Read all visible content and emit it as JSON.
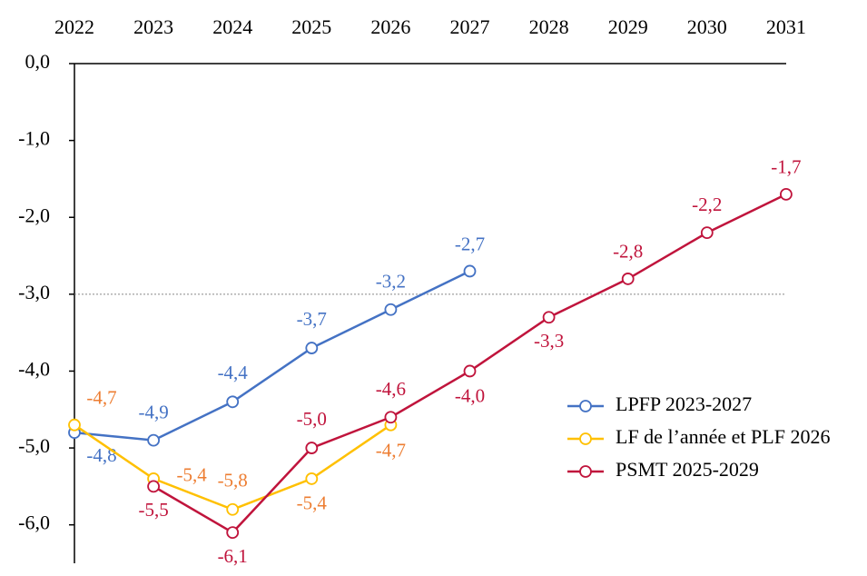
{
  "chart_data": {
    "type": "line",
    "categories": [
      "2022",
      "2023",
      "2024",
      "2025",
      "2026",
      "2027",
      "2028",
      "2029",
      "2030",
      "2031"
    ],
    "ylim": [
      -6.5,
      0
    ],
    "yticks": [
      {
        "value": 0,
        "label": "0,0"
      },
      {
        "value": -1,
        "label": "-1,0"
      },
      {
        "value": -2,
        "label": "-2,0"
      },
      {
        "value": -3,
        "label": "-3,0"
      },
      {
        "value": -4,
        "label": "-4,0"
      },
      {
        "value": -5,
        "label": "-5,0"
      },
      {
        "value": -6,
        "label": "-6,0"
      }
    ],
    "reference_line": -3,
    "legend": "bottom-right",
    "series": [
      {
        "name": "LPFP 2023-2027",
        "color": "#4472c4",
        "label_color": "#4472c4",
        "values": [
          -4.8,
          -4.9,
          -4.4,
          -3.7,
          -3.2,
          -2.7,
          null,
          null,
          null,
          null
        ],
        "value_labels": [
          "-4,8",
          "-4,9",
          "-4,4",
          "-3,7",
          "-3,2",
          "-2,7",
          null,
          null,
          null,
          null
        ]
      },
      {
        "name": "LF de l’année et PLF 2026",
        "color": "#ffc000",
        "label_color": "#ed7d31",
        "values": [
          -4.7,
          -5.4,
          -5.8,
          -5.4,
          -4.7,
          null,
          null,
          null,
          null,
          null
        ],
        "value_labels": [
          "-4,7",
          "-5,4",
          "-5,8",
          "-5,4",
          "-4,7",
          null,
          null,
          null,
          null,
          null
        ]
      },
      {
        "name": "PSMT 2025-2029",
        "color": "#c0143c",
        "label_color": "#c0143c",
        "values": [
          null,
          -5.5,
          -6.1,
          -5.0,
          -4.6,
          -4.0,
          -3.3,
          -2.8,
          -2.2,
          -1.7
        ],
        "value_labels": [
          null,
          "-5,5",
          "-6,1",
          "-5,0",
          "-4,6",
          "-4,0",
          "-3,3",
          "-2,8",
          "-2,2",
          "-1,7"
        ]
      }
    ]
  }
}
